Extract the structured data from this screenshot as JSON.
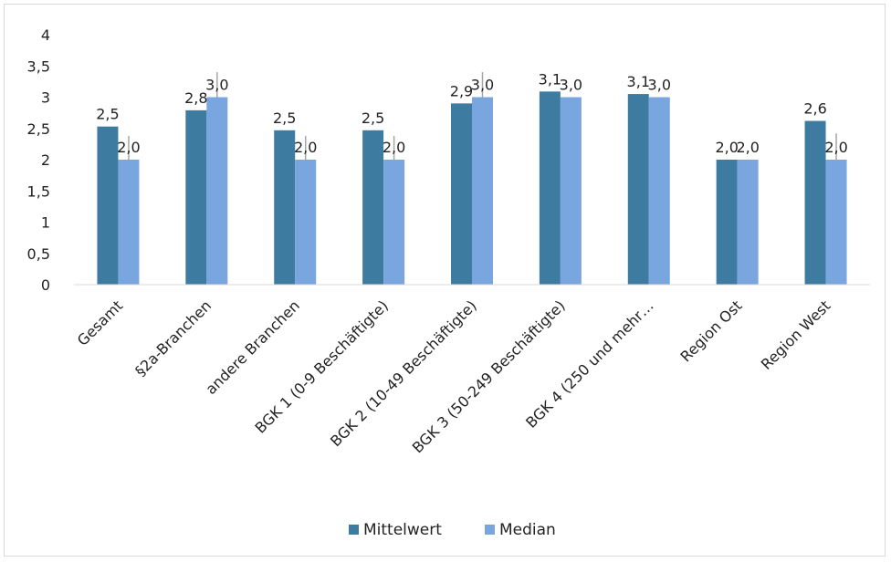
{
  "chart_data": {
    "type": "bar",
    "title": "",
    "xlabel": "",
    "ylabel": "",
    "ylim": [
      0,
      4
    ],
    "y_ticks": [
      "0",
      "0,5",
      "1",
      "1,5",
      "2",
      "2,5",
      "3",
      "3,5",
      "4"
    ],
    "grid": false,
    "legend_position": "bottom",
    "categories": [
      "Gesamt",
      "§2a-Branchen",
      "andere Branchen",
      "BGK 1 (0-9 Beschäftigte)",
      "BGK 2 (10-49 Beschäftigte)",
      "BGK 3 (50-249 Beschäftigte)",
      "BGK 4 (250 und mehr…",
      "Region Ost",
      "Region West"
    ],
    "series": [
      {
        "name": "Mittelwert",
        "color": "#3e7ba0",
        "values": [
          2.53,
          2.79,
          2.47,
          2.47,
          2.9,
          3.09,
          3.05,
          2.0,
          2.62
        ],
        "labels": [
          "2,5",
          "2,8",
          "2,5",
          "2,5",
          "2,9",
          "3,1",
          "3,1",
          "2,0",
          "2,6"
        ]
      },
      {
        "name": "Median",
        "color": "#79a6df",
        "values": [
          2.0,
          3.0,
          2.0,
          2.0,
          3.0,
          3.0,
          3.0,
          2.0,
          2.0
        ],
        "labels": [
          "2,0",
          "3,0",
          "2,0",
          "2,0",
          "3,0",
          "3,0",
          "3,0",
          "2,0",
          "2,0"
        ]
      }
    ],
    "error_bars": {
      "color": "#a6a6a6",
      "series": "Median",
      "upper": [
        2.38,
        3.4,
        2.38,
        2.38,
        3.4,
        null,
        null,
        null,
        2.42
      ]
    }
  }
}
